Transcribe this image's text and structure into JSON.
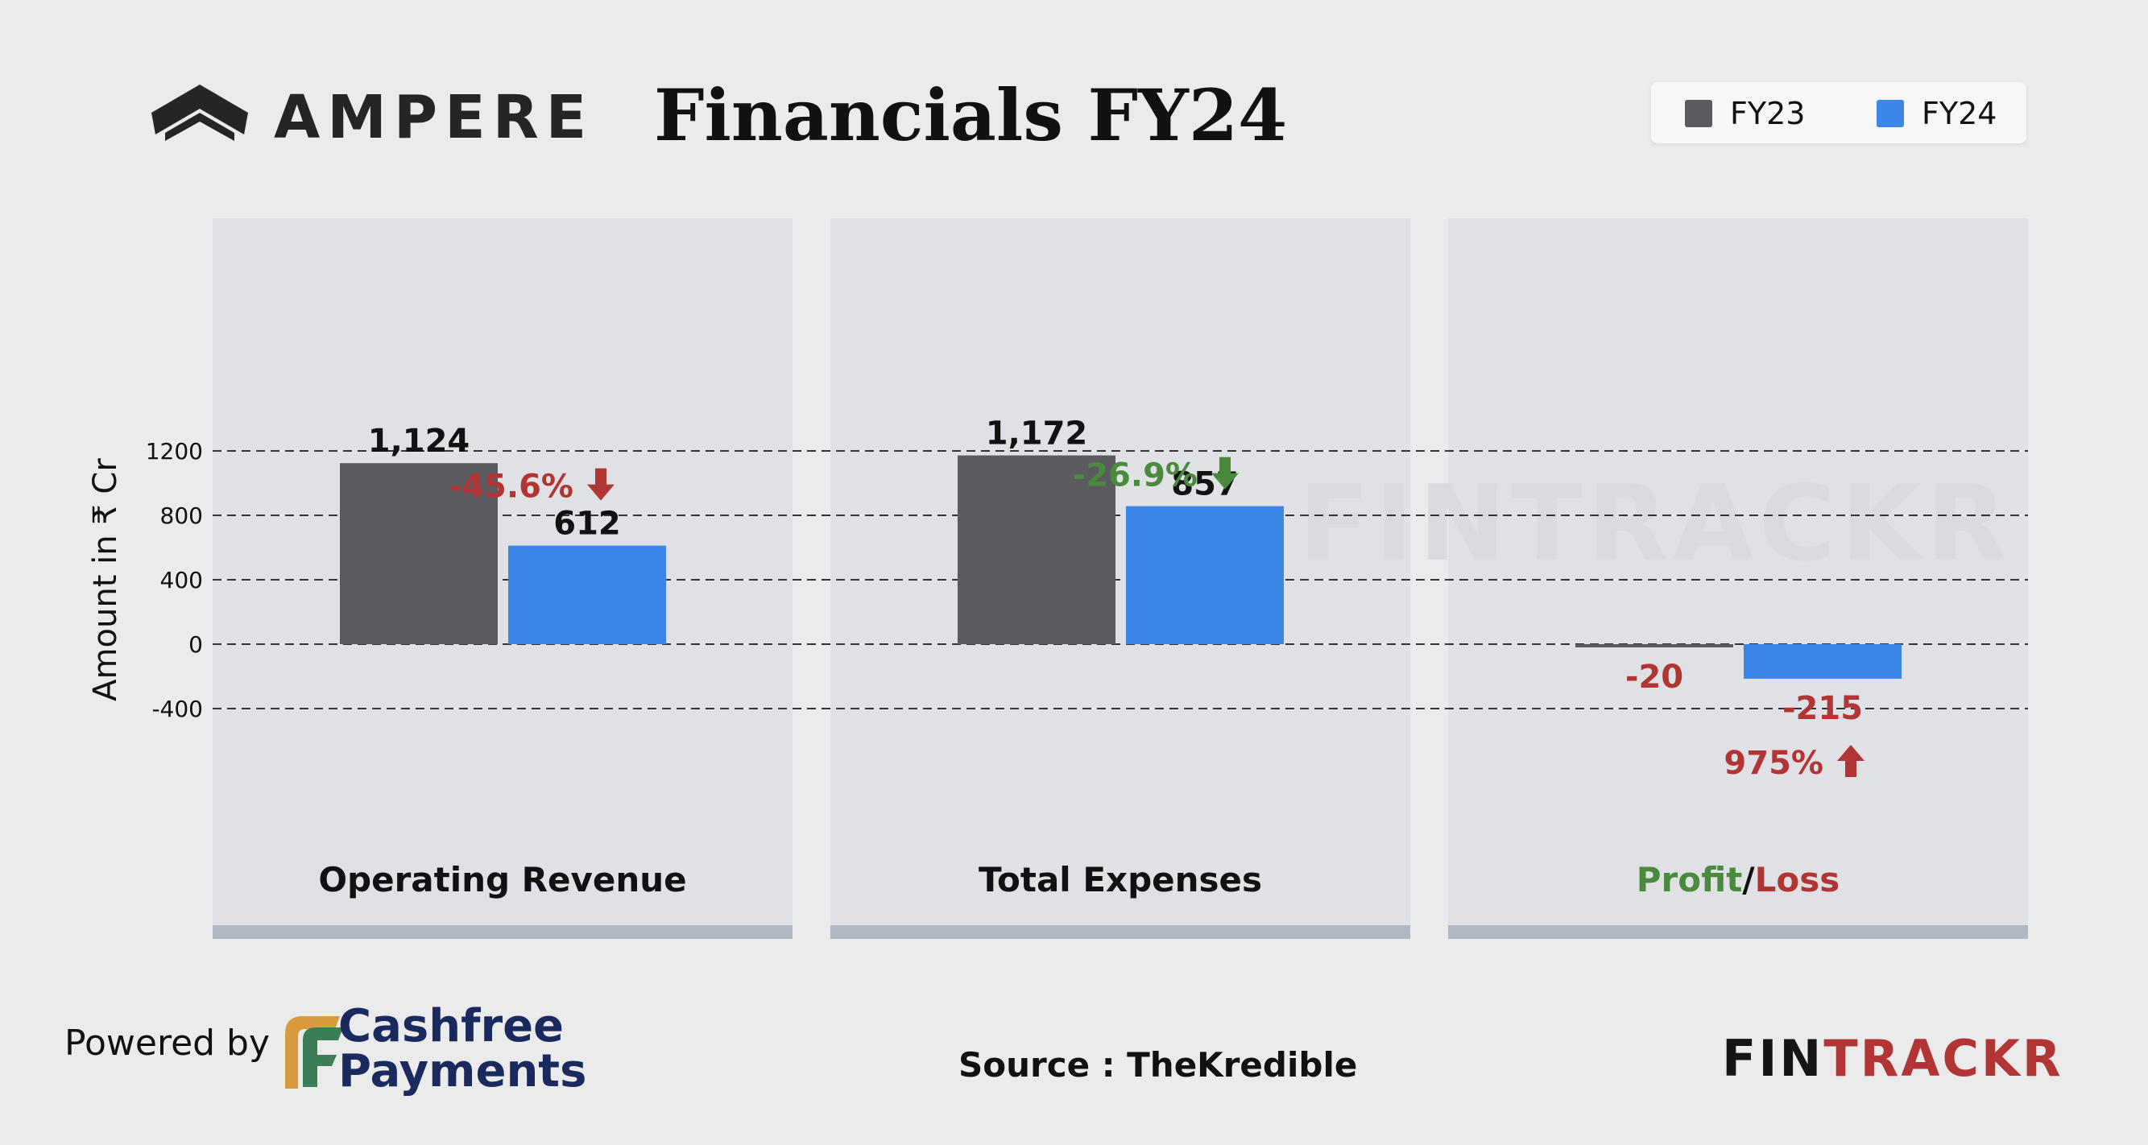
{
  "header": {
    "brand": "AMPERE",
    "title": "Financials FY24"
  },
  "legend": [
    {
      "label": "FY23",
      "color": "#5a5a5f"
    },
    {
      "label": "FY24",
      "color": "#3b86e6"
    }
  ],
  "colors": {
    "panel": "#e0e1e5",
    "panel_base": "#b0b8c4",
    "grid": "#333333",
    "negative": "#b23535",
    "positive": "#4a8a3e",
    "watermark": "#dadbdf"
  },
  "watermark": "FINTRACKR",
  "chart_data": {
    "type": "bar",
    "ylabel": "Amount in ₹ Cr",
    "yticks": [
      1200,
      800,
      400,
      0,
      -400
    ],
    "ylim": [
      -400,
      1200
    ],
    "grid": true,
    "legend_position": "top-right",
    "series_names": [
      "FY23",
      "FY24"
    ],
    "panels": [
      {
        "category": "Operating Revenue",
        "values": [
          1124,
          612
        ],
        "value_labels": [
          "1,124",
          "612"
        ],
        "change": {
          "label": "-45.6%",
          "direction": "down",
          "sentiment": "negative"
        }
      },
      {
        "category": "Total Expenses",
        "values": [
          1172,
          857
        ],
        "value_labels": [
          "1,172",
          "857"
        ],
        "change": {
          "label": "-26.9%",
          "direction": "down",
          "sentiment": "positive"
        }
      },
      {
        "category_parts": [
          "Profit",
          "/",
          "Loss"
        ],
        "values": [
          -20,
          -215
        ],
        "value_labels": [
          "-20",
          "-215"
        ],
        "change": {
          "label": "975%",
          "direction": "up",
          "sentiment": "negative"
        }
      }
    ]
  },
  "footer": {
    "powered_by": "Powered by",
    "cashfree_line1": "Cashfree",
    "cashfree_line2": "Payments",
    "source": "Source : TheKredible",
    "logo_part1": "FIN",
    "logo_part2": "TRACKR"
  }
}
